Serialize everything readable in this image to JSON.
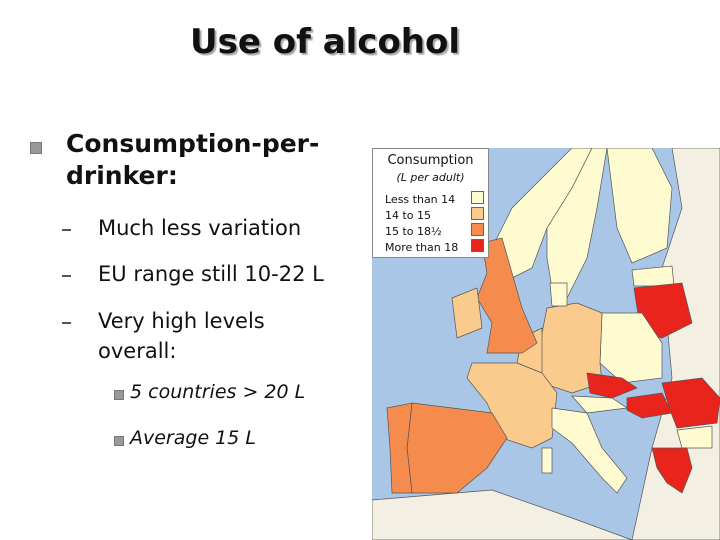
{
  "title": "Use of alcohol",
  "bullet": {
    "text": "Consumption-per-drinker:",
    "sub_bullets": [
      "Much less variation",
      "EU range still 10-22 L",
      "Very high levels overall:"
    ],
    "sub_sub_bullets": [
      "5 countries > 20 L",
      "Average 15 L"
    ]
  },
  "legend": {
    "title": "Consumption",
    "subtitle": "(L per adult)",
    "items": [
      "Less than 14",
      "14 to 15",
      "15 to 18½",
      "More than 18"
    ]
  }
}
